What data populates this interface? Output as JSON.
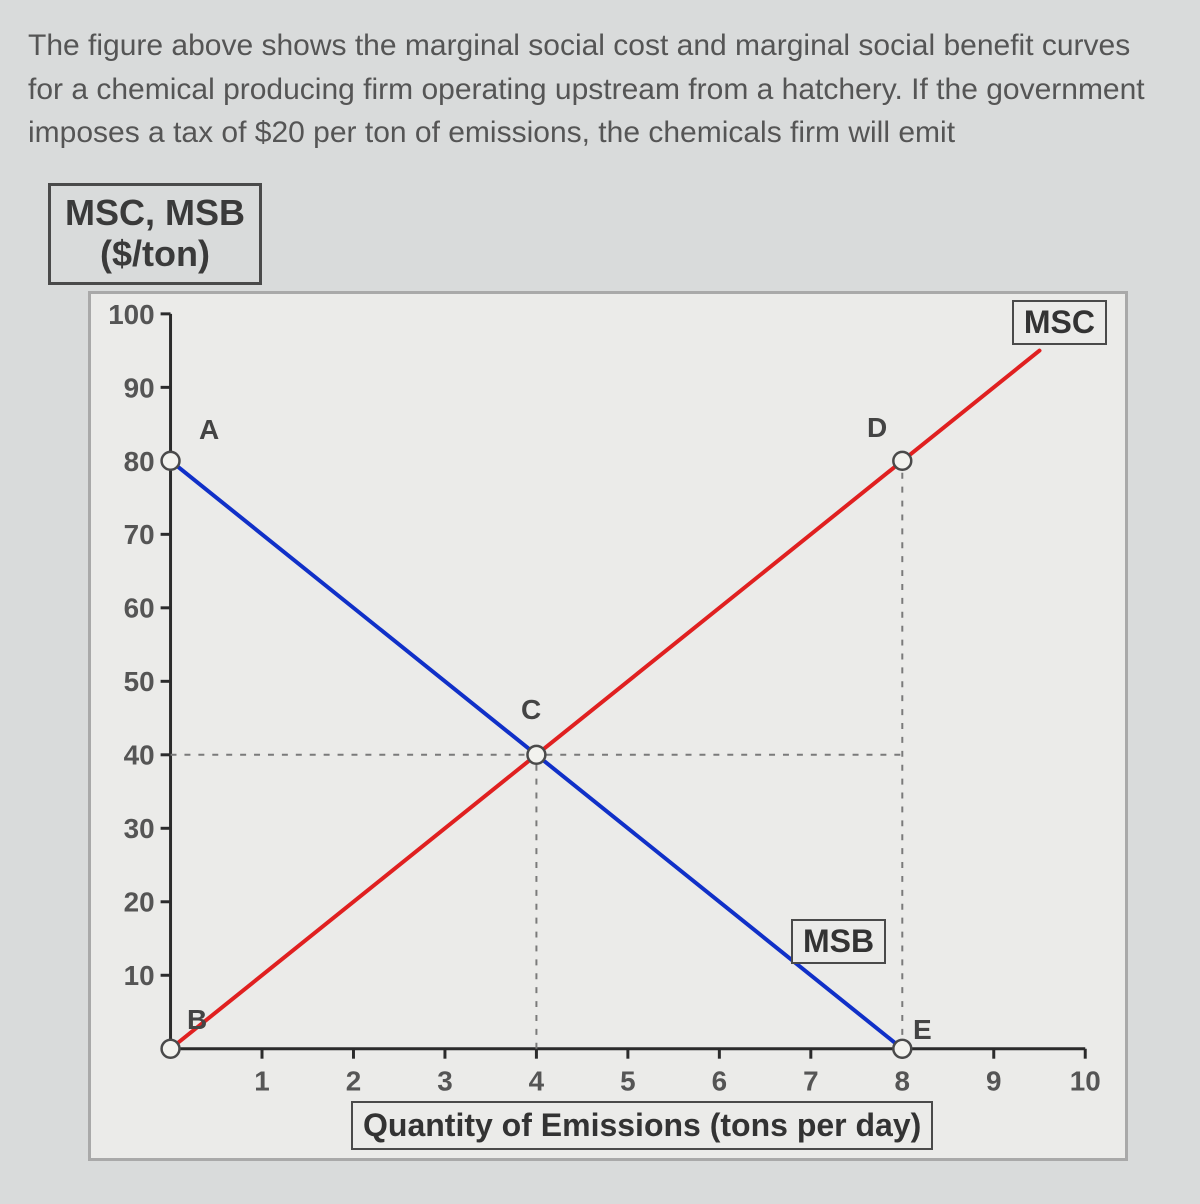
{
  "question_text": "The figure above shows the marginal social cost and marginal social benefit curves for a chemical producing firm operating upstream from a hatchery. If the government imposes a tax of $20 per ton of emissions, the chemicals firm will emit",
  "chart": {
    "type": "line",
    "y_axis_title_line1": "MSC, MSB",
    "y_axis_title_line2": "($/ton)",
    "x_axis_title": "Quantity of Emissions (tons per day)",
    "xlim": [
      0,
      10
    ],
    "ylim": [
      0,
      100
    ],
    "x_ticks": [
      1,
      2,
      3,
      4,
      5,
      6,
      7,
      8,
      9,
      10
    ],
    "y_ticks": [
      10,
      20,
      30,
      40,
      50,
      60,
      70,
      80,
      90,
      100
    ],
    "background_color": "#ebebe9",
    "axis_color": "#2b2b2b",
    "tick_color": "#2b2b2b",
    "grid_dash_color": "#7a7a7a",
    "lines": {
      "MSB": {
        "label": "MSB",
        "color": "#1030c8",
        "width": 4,
        "p1": {
          "x": 0,
          "y": 80
        },
        "p2": {
          "x": 8,
          "y": 0
        }
      },
      "MSC": {
        "label": "MSC",
        "color": "#e02020",
        "width": 4,
        "p1": {
          "x": 0,
          "y": 0
        },
        "p2": {
          "x": 9.5,
          "y": 95
        }
      }
    },
    "points": {
      "A": {
        "label": "A",
        "x": 0,
        "y": 80
      },
      "B": {
        "label": "B",
        "x": 0,
        "y": 0
      },
      "C": {
        "label": "C",
        "x": 4,
        "y": 40
      },
      "D": {
        "label": "D",
        "x": 8,
        "y": 80
      },
      "E": {
        "label": "E",
        "x": 8,
        "y": 0
      }
    },
    "marker": {
      "radius": 9,
      "fill": "#f2f2ee",
      "stroke": "#4a4a4a",
      "stroke_width": 2.5
    },
    "guide_lines": [
      {
        "from": {
          "x": 0,
          "y": 40
        },
        "to": {
          "x": 8,
          "y": 40
        }
      },
      {
        "from": {
          "x": 4,
          "y": 0
        },
        "to": {
          "x": 4,
          "y": 40
        }
      },
      {
        "from": {
          "x": 8,
          "y": 0
        },
        "to": {
          "x": 8,
          "y": 80
        }
      }
    ]
  }
}
